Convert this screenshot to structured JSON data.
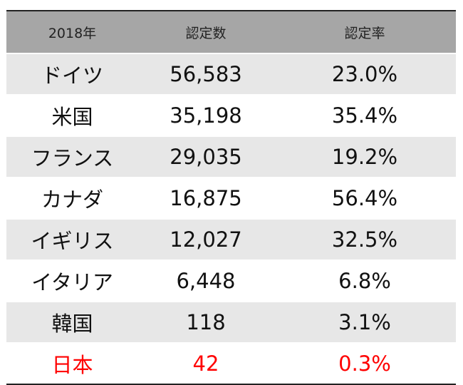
{
  "chart_data": {
    "type": "table",
    "columns": [
      "2018年",
      "認定数",
      "認定率"
    ],
    "rows": [
      {
        "country": "ドイツ",
        "count": "56,583",
        "rate": "23.0%"
      },
      {
        "country": "米国",
        "count": "35,198",
        "rate": "35.4%"
      },
      {
        "country": "フランス",
        "count": "29,035",
        "rate": "19.2%"
      },
      {
        "country": "カナダ",
        "count": "16,875",
        "rate": "56.4%"
      },
      {
        "country": "イギリス",
        "count": "12,027",
        "rate": "32.5%"
      },
      {
        "country": "イタリア",
        "count": "6,448",
        "rate": "6.8%"
      },
      {
        "country": "韓国",
        "count": "118",
        "rate": "3.1%"
      },
      {
        "country": "日本",
        "count": "42",
        "rate": "0.3%"
      }
    ],
    "highlight_row_index": 7,
    "colors": {
      "header_bg": "#a6a6a6",
      "stripe_bg": "#e7e7e7",
      "highlight_text": "#ff0000"
    }
  }
}
